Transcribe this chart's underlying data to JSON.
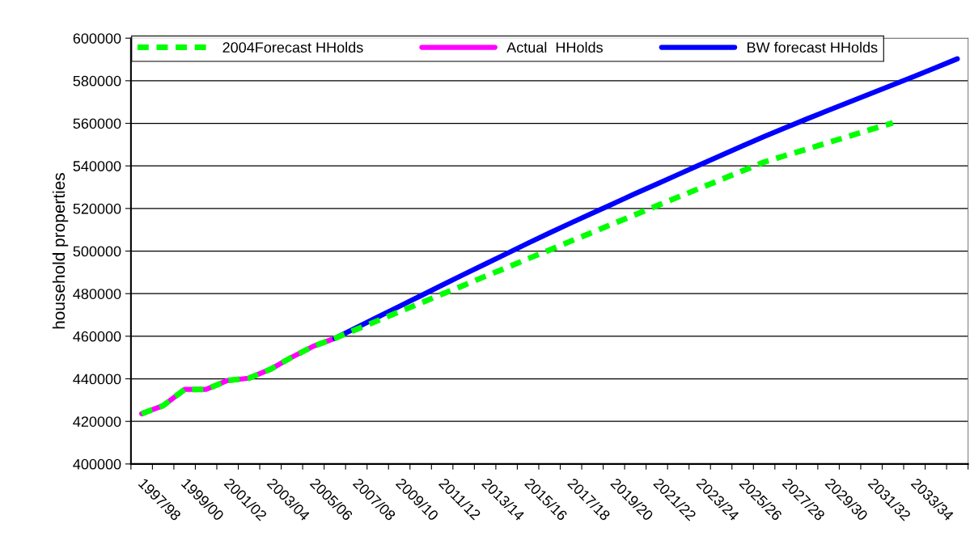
{
  "chart_data": {
    "type": "line",
    "ylabel": "household properties",
    "categories": [
      "1997/98",
      null,
      "1999/00",
      null,
      "2001/02",
      null,
      "2003/04",
      null,
      "2005/06",
      null,
      "2007/08",
      null,
      "2009/10",
      null,
      "2011/12",
      null,
      "2013/14",
      null,
      "2015/16",
      null,
      "2017/18",
      null,
      "2019/20",
      null,
      "2021/22",
      null,
      "2023/24",
      null,
      "2025/26",
      null,
      "2027/28",
      null,
      "2029/30",
      null,
      "2031/32",
      null,
      "2033/34",
      null,
      null
    ],
    "series": [
      {
        "name": "2004Forecast HHolds",
        "color": "#00ff00",
        "line_style": "dashed",
        "values": [
          423600,
          427400,
          435000,
          435000,
          439200,
          440300,
          444500,
          450200,
          455300,
          459000,
          463200,
          467300,
          471500,
          475600,
          479800,
          483900,
          488100,
          492200,
          496400,
          500500,
          504700,
          508800,
          513000,
          517100,
          521300,
          525400,
          529500,
          533600,
          537700,
          541800,
          544900,
          547900,
          551000,
          554100,
          557200,
          560200,
          null,
          null,
          null
        ]
      },
      {
        "name": "Actual  HHolds",
        "color": "#ff00ff",
        "line_style": "solid",
        "values": [
          423600,
          427400,
          435000,
          435000,
          439200,
          440300,
          444500,
          450200,
          455300,
          459000,
          null,
          null,
          null,
          null,
          null,
          null,
          null,
          null,
          null,
          null,
          null,
          null,
          null,
          null,
          null,
          null,
          null,
          null,
          null,
          null,
          null,
          null,
          null,
          null,
          null,
          null,
          null,
          null,
          null
        ]
      },
      {
        "name": "BW forecast HHolds",
        "color": "#0000ff",
        "line_style": "solid",
        "values": [
          null,
          null,
          null,
          null,
          null,
          null,
          null,
          null,
          null,
          459000,
          464000,
          469000,
          474000,
          479000,
          484000,
          489000,
          493900,
          498800,
          503700,
          508500,
          513200,
          517800,
          522400,
          527000,
          531500,
          536000,
          540500,
          545000,
          549400,
          553800,
          558000,
          562100,
          566100,
          570100,
          574100,
          578100,
          582100,
          586200,
          590300
        ]
      }
    ],
    "ylim": [
      400000,
      600000
    ],
    "yticks": [
      400000,
      420000,
      440000,
      460000,
      480000,
      500000,
      520000,
      540000,
      560000,
      580000,
      600000
    ],
    "grid": "y",
    "legend": "top",
    "marker": "none"
  }
}
